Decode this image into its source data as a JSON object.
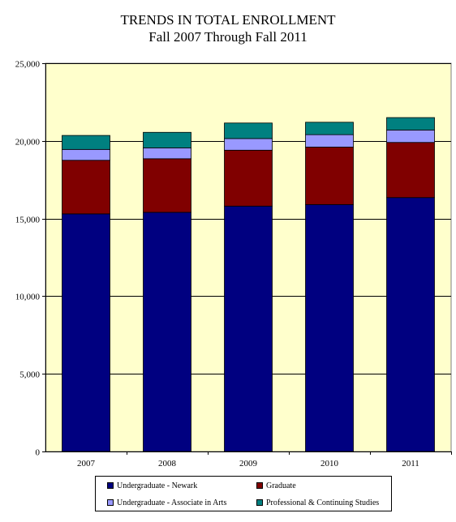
{
  "chart_data": {
    "type": "bar",
    "stacked": true,
    "title": "TRENDS IN TOTAL ENROLLMENT",
    "subtitle": "Fall 2007 Through Fall 2011",
    "xlabel": "",
    "ylabel": "",
    "ylim": [
      0,
      25000
    ],
    "yticks": [
      "0",
      "5,000",
      "10,000",
      "15,000",
      "20,000",
      "25,000"
    ],
    "ytick_values": [
      0,
      5000,
      10000,
      15000,
      20000,
      25000
    ],
    "grid": true,
    "legend_position": "bottom",
    "categories": [
      "2007",
      "2008",
      "2009",
      "2010",
      "2011"
    ],
    "series": [
      {
        "name": "Undergraduate - Newark",
        "color": "#000080",
        "values": [
          15300,
          15400,
          15800,
          15900,
          16350
        ]
      },
      {
        "name": "Graduate",
        "color": "#800000",
        "values": [
          3450,
          3450,
          3600,
          3700,
          3550
        ]
      },
      {
        "name": "Undergraduate - Associate in Arts",
        "color": "#9999ff",
        "values": [
          700,
          700,
          750,
          800,
          800
        ]
      },
      {
        "name": "Professional & Continuing Studies",
        "color": "#008080",
        "values": [
          900,
          1000,
          1000,
          800,
          800
        ]
      }
    ],
    "plot_background": "#ffffcc"
  }
}
